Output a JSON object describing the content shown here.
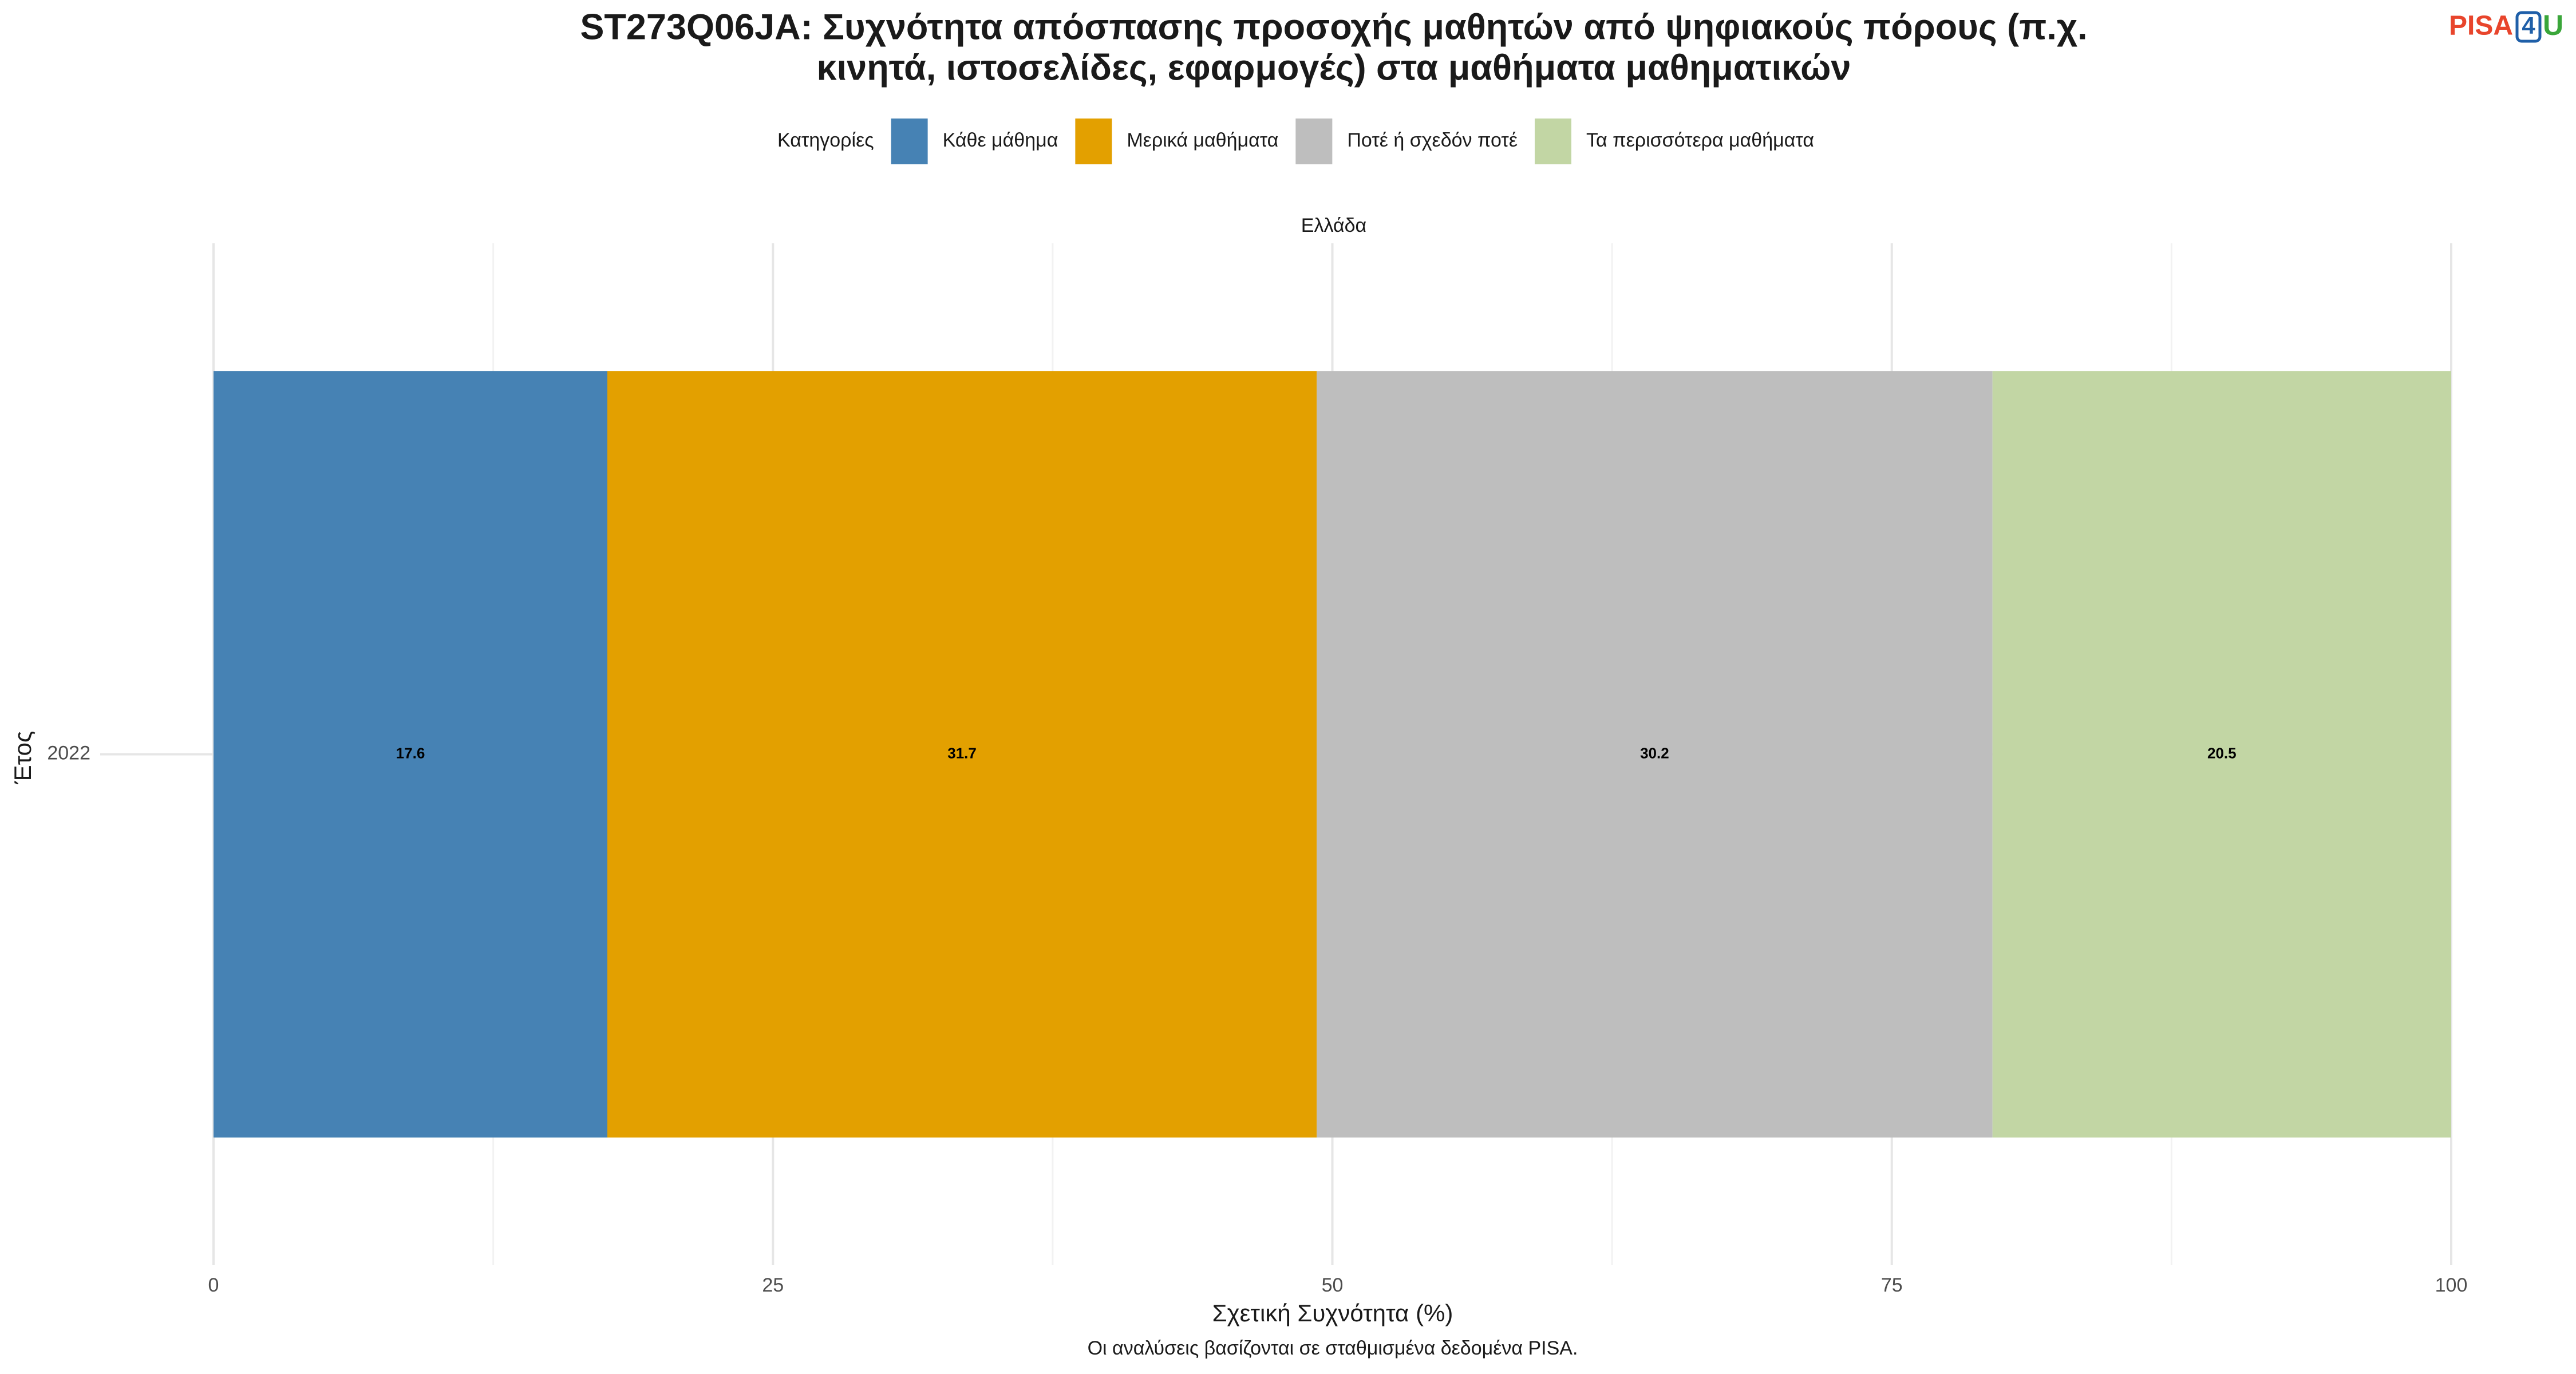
{
  "chart_data": {
    "type": "stacked_bar_horizontal",
    "title": [
      "ST273Q06JA: Συχνότητα απόσπασης προσοχής μαθητών από ψηφιακούς πόρους (π.χ.",
      "κινητά, ιστοσελίδες, εφαρμογές) στα μαθήματα μαθηματικών"
    ],
    "legend_title": "Κατηγορίες",
    "facet_label": "Ελλάδα",
    "categories": [
      "2022"
    ],
    "series": [
      {
        "name": "Κάθε μάθημα",
        "color": "#4682b4",
        "values": [
          17.6
        ]
      },
      {
        "name": "Μερικά μαθήματα",
        "color": "#e3a000",
        "values": [
          31.7
        ]
      },
      {
        "name": "Ποτέ ή σχεδόν ποτέ",
        "color": "#bebebe",
        "values": [
          30.2
        ]
      },
      {
        "name": "Τα περισσότερα μαθήματα",
        "color": "#c2d6a4",
        "values": [
          20.5
        ]
      }
    ],
    "xlim": [
      0,
      100
    ],
    "xticks": [
      0,
      25,
      50,
      75,
      100
    ],
    "x_label": "Σχετική Συχνότητα (%)",
    "y_label": "Έτος",
    "caption": "Οι αναλύσεις βασίζονται σε σταθμισμένα δεδομένα PISA.",
    "logo": [
      "PISA",
      "4",
      "U"
    ],
    "grid": true,
    "legend_position": "top"
  }
}
